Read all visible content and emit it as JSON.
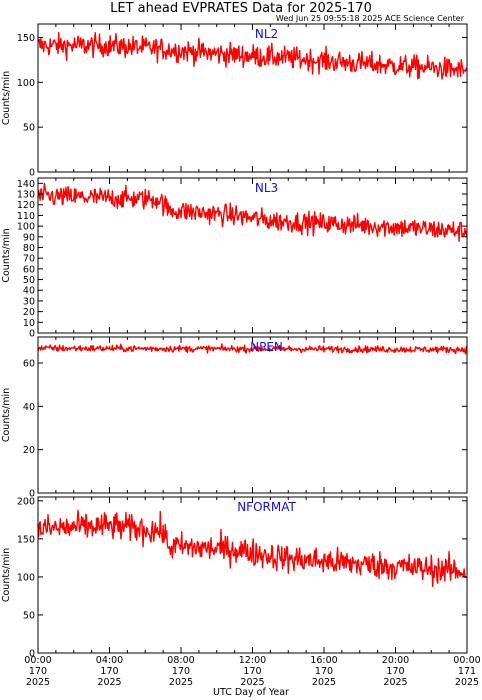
{
  "title": "LET ahead EVPRATES Data for 2025-170",
  "timestamp": "Wed Jun 25 09:55:18 2025 ACE Science Center",
  "x_axis_label": "UTC Day of Year",
  "x_ticks": [
    {
      "time": "00:00",
      "doy": "170",
      "year": "2025"
    },
    {
      "time": "04:00",
      "doy": "170",
      "year": "2025"
    },
    {
      "time": "08:00",
      "doy": "170",
      "year": "2025"
    },
    {
      "time": "12:00",
      "doy": "170",
      "year": "2025"
    },
    {
      "time": "16:00",
      "doy": "170",
      "year": "2025"
    },
    {
      "time": "20:00",
      "doy": "170",
      "year": "2025"
    },
    {
      "time": "00:00",
      "doy": "171",
      "year": "2025"
    }
  ],
  "colors": {
    "line": "#ff0000",
    "panel_label": "#1010e0",
    "axes": "#000000"
  },
  "chart_data": [
    {
      "type": "line",
      "name": "NL2",
      "ylabel": "Counts/min",
      "xlim": [
        0,
        24
      ],
      "ylim": [
        0,
        165
      ],
      "yticks": [
        0,
        50,
        100,
        150
      ],
      "trend": [
        [
          0,
          141
        ],
        [
          4,
          141
        ],
        [
          7,
          137
        ],
        [
          10,
          132
        ],
        [
          14,
          127
        ],
        [
          18,
          121
        ],
        [
          22,
          116
        ],
        [
          24,
          113
        ]
      ],
      "noise": 9,
      "points_per_hour": 25
    },
    {
      "type": "line",
      "name": "NL3",
      "ylabel": "Counts/min",
      "xlim": [
        0,
        24
      ],
      "ylim": [
        0,
        145
      ],
      "yticks": [
        0,
        10,
        20,
        30,
        40,
        50,
        60,
        70,
        80,
        90,
        100,
        110,
        120,
        130,
        140
      ],
      "trend": [
        [
          0,
          128
        ],
        [
          6.8,
          125
        ],
        [
          7.3,
          115
        ],
        [
          11,
          110
        ],
        [
          13,
          105
        ],
        [
          18,
          101
        ],
        [
          24,
          95
        ]
      ],
      "noise": 7,
      "points_per_hour": 25
    },
    {
      "type": "line",
      "name": "NPEN",
      "ylabel": "Counts/min",
      "xlim": [
        0,
        24
      ],
      "ylim": [
        0,
        72
      ],
      "yticks": [
        0,
        20,
        40,
        60
      ],
      "trend": [
        [
          0,
          66.8
        ],
        [
          24,
          66.2
        ]
      ],
      "noise": 1.1,
      "points_per_hour": 25
    },
    {
      "type": "line",
      "name": "NFORMAT",
      "ylabel": "Counts/min",
      "xlim": [
        0,
        24
      ],
      "ylim": [
        0,
        205
      ],
      "yticks": [
        0,
        50,
        100,
        150,
        200
      ],
      "trend": [
        [
          0,
          163
        ],
        [
          4,
          167
        ],
        [
          7,
          160
        ],
        [
          7.3,
          140
        ],
        [
          11,
          136
        ],
        [
          14,
          124
        ],
        [
          18,
          117
        ],
        [
          24,
          107
        ]
      ],
      "noise": 13,
      "points_per_hour": 25
    }
  ]
}
